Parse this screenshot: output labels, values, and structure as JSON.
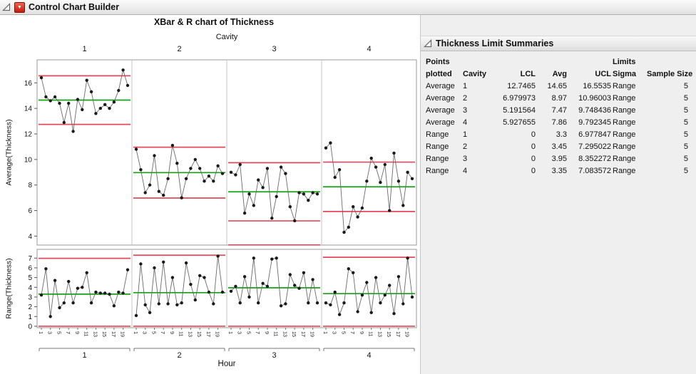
{
  "window": {
    "title": "Control Chart Builder"
  },
  "summary_panel": {
    "title": "Thickness Limit Summaries",
    "table": {
      "header_row1": [
        "Points",
        "",
        "",
        "",
        "",
        "Limits",
        ""
      ],
      "header_row2": [
        "plotted",
        "Cavity",
        "LCL",
        "Avg",
        "UCL",
        "Sigma",
        "Sample Size"
      ],
      "rows": [
        [
          "Average",
          "1",
          "12.7465",
          "14.65",
          "16.5535",
          "Range",
          "5"
        ],
        [
          "Average",
          "2",
          "6.979973",
          "8.97",
          "10.96003",
          "Range",
          "5"
        ],
        [
          "Average",
          "3",
          "5.191564",
          "7.47",
          "9.748436",
          "Range",
          "5"
        ],
        [
          "Average",
          "4",
          "5.927655",
          "7.86",
          "9.792345",
          "Range",
          "5"
        ],
        [
          "Range",
          "1",
          "0",
          "3.3",
          "6.977847",
          "Range",
          "5"
        ],
        [
          "Range",
          "2",
          "0",
          "3.45",
          "7.295022",
          "Range",
          "5"
        ],
        [
          "Range",
          "3",
          "0",
          "3.95",
          "8.352272",
          "Range",
          "5"
        ],
        [
          "Range",
          "4",
          "0",
          "3.35",
          "7.083572",
          "Range",
          "5"
        ]
      ]
    }
  },
  "chart_data": {
    "type": "line",
    "title": "XBar & R chart of Thickness",
    "panel_variable": "Cavity",
    "panels": [
      "1",
      "2",
      "3",
      "4"
    ],
    "xlabel": "Hour",
    "x_ticks": [
      1,
      3,
      5,
      7,
      9,
      11,
      13,
      15,
      17,
      19
    ],
    "points_per_panel": 20,
    "colors": {
      "limit_line": "#e2485a",
      "center_line": "#12a312",
      "point": "#1a1a1a",
      "connector": "#6a6a6a"
    },
    "top": {
      "ylabel": "Average(Thickness)",
      "ylim": [
        3.3,
        17.8
      ],
      "yticks": [
        4,
        6,
        8,
        10,
        12,
        14,
        16
      ],
      "series": [
        {
          "cavity": "1",
          "lcl": 12.7465,
          "avg": 14.65,
          "ucl": 16.5535,
          "values": [
            16.4,
            14.9,
            14.6,
            14.9,
            14.4,
            12.9,
            14.4,
            12.2,
            14.7,
            13.9,
            16.2,
            15.3,
            13.6,
            14.0,
            14.3,
            14.0,
            14.5,
            15.4,
            17.0,
            15.8
          ]
        },
        {
          "cavity": "2",
          "lcl": 6.979973,
          "avg": 8.97,
          "ucl": 10.96003,
          "values": [
            10.8,
            9.2,
            7.4,
            8.0,
            10.3,
            7.5,
            7.2,
            8.5,
            11.1,
            9.7,
            7.0,
            8.5,
            9.3,
            10.0,
            9.3,
            8.3,
            8.7,
            8.3,
            9.5,
            8.9
          ]
        },
        {
          "cavity": "3",
          "lcl": 5.191564,
          "avg": 7.47,
          "ucl": 9.748436,
          "values": [
            9.0,
            8.8,
            9.6,
            5.8,
            7.3,
            6.4,
            8.4,
            7.8,
            9.3,
            5.4,
            7.1,
            9.4,
            8.9,
            6.3,
            5.2,
            7.4,
            7.3,
            6.8,
            7.4,
            7.3
          ]
        },
        {
          "cavity": "4",
          "lcl": 5.927655,
          "avg": 7.86,
          "ucl": 9.792345,
          "values": [
            10.9,
            11.3,
            8.6,
            9.2,
            4.3,
            4.7,
            6.3,
            5.5,
            6.2,
            8.3,
            10.1,
            9.4,
            8.2,
            9.6,
            6.0,
            10.5,
            8.3,
            6.4,
            9.0,
            8.5
          ]
        }
      ]
    },
    "bottom": {
      "ylabel": "Range(Thickness)",
      "ylim": [
        -0.15,
        7.9
      ],
      "yticks": [
        0,
        1,
        2,
        3,
        4,
        5,
        6,
        7
      ],
      "series": [
        {
          "cavity": "1",
          "lcl": 0,
          "avg": 3.3,
          "ucl": 6.977847,
          "values": [
            3.2,
            5.9,
            1.0,
            4.7,
            1.9,
            2.4,
            4.6,
            2.4,
            3.9,
            4.0,
            5.5,
            2.4,
            3.5,
            3.4,
            3.4,
            3.3,
            2.1,
            3.5,
            3.4,
            5.8
          ]
        },
        {
          "cavity": "2",
          "lcl": 0,
          "avg": 3.45,
          "ucl": 7.295022,
          "values": [
            1.1,
            6.4,
            2.2,
            1.4,
            6.0,
            2.3,
            6.6,
            2.3,
            5.0,
            2.2,
            2.4,
            6.5,
            4.3,
            2.7,
            5.2,
            5.0,
            3.5,
            2.3,
            7.2,
            3.5
          ]
        },
        {
          "cavity": "3",
          "lcl": 0,
          "avg": 3.95,
          "ucl": 8.352272,
          "values": [
            3.6,
            4.1,
            2.4,
            5.1,
            3.0,
            7.0,
            2.4,
            4.4,
            4.1,
            6.9,
            7.0,
            2.1,
            2.3,
            5.3,
            4.2,
            3.9,
            5.5,
            2.4,
            4.8,
            2.4
          ]
        },
        {
          "cavity": "4",
          "lcl": 0,
          "avg": 3.35,
          "ucl": 7.083572,
          "values": [
            2.4,
            2.2,
            3.5,
            1.2,
            2.4,
            5.9,
            5.5,
            1.5,
            3.2,
            4.5,
            1.4,
            5.0,
            2.4,
            3.2,
            4.2,
            1.3,
            5.1,
            2.3,
            7.0,
            3.0
          ]
        }
      ]
    }
  }
}
